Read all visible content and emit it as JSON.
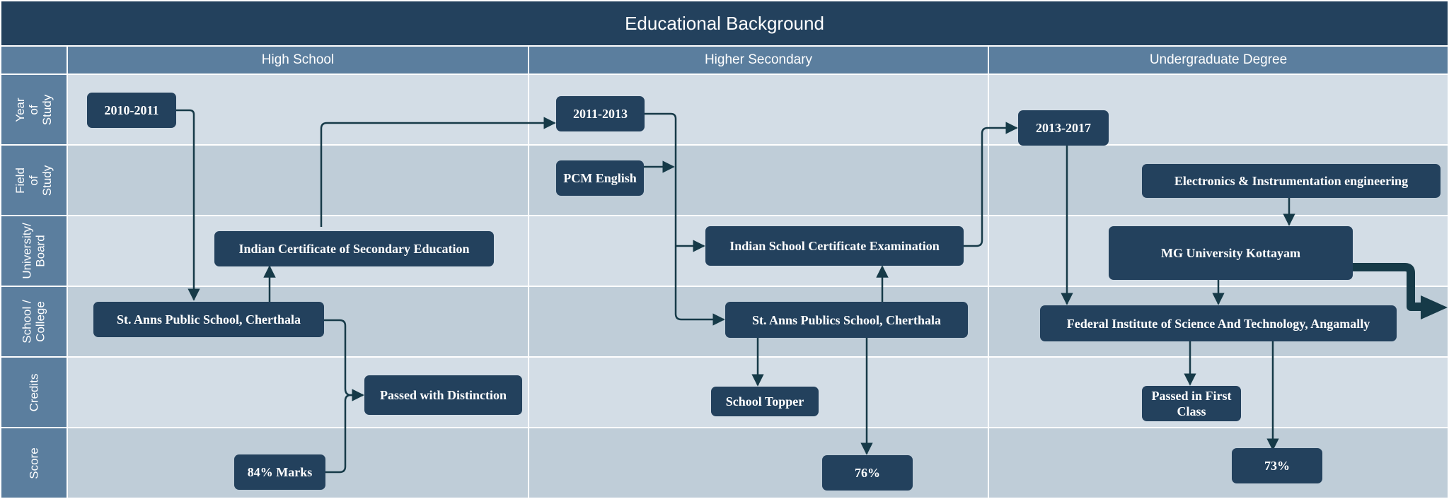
{
  "title": "Educational Background",
  "columns": [
    "High School",
    "Higher Secondary",
    "Undergraduate Degree"
  ],
  "rows": [
    "Year\nof\nStudy",
    "Field\nof\nStudy",
    "University/\nBoard",
    "School /\nCollege",
    "Credits",
    "Score"
  ],
  "nodes": {
    "hs_year": "2010-2011",
    "hs_board": "Indian Certificate of Secondary Education",
    "hs_school": "St. Anns Public School, Cherthala",
    "hs_credits": "Passed with Distinction",
    "hs_score": "84% Marks",
    "hsc_year": "2011-2013",
    "hsc_field": "PCM English",
    "hsc_board": "Indian School Certificate Examination",
    "hsc_school": "St. Anns Publics School, Cherthala",
    "hsc_credits": "School Topper",
    "hsc_score": "76%",
    "ug_year": "2013-2017",
    "ug_field": "Electronics & Instrumentation engineering",
    "ug_university": "MG University Kottayam",
    "ug_college": "Federal Institute of Science And Technology, Angamally",
    "ug_credits": "Passed in First Class",
    "ug_score": "73%"
  },
  "colors": {
    "title_bg": "#23415d",
    "header_bg": "#5b7e9e",
    "row_light": "#d3dde6",
    "row_dark": "#bfcdd8",
    "node_bg": "#23415d",
    "connector": "#163a48"
  }
}
